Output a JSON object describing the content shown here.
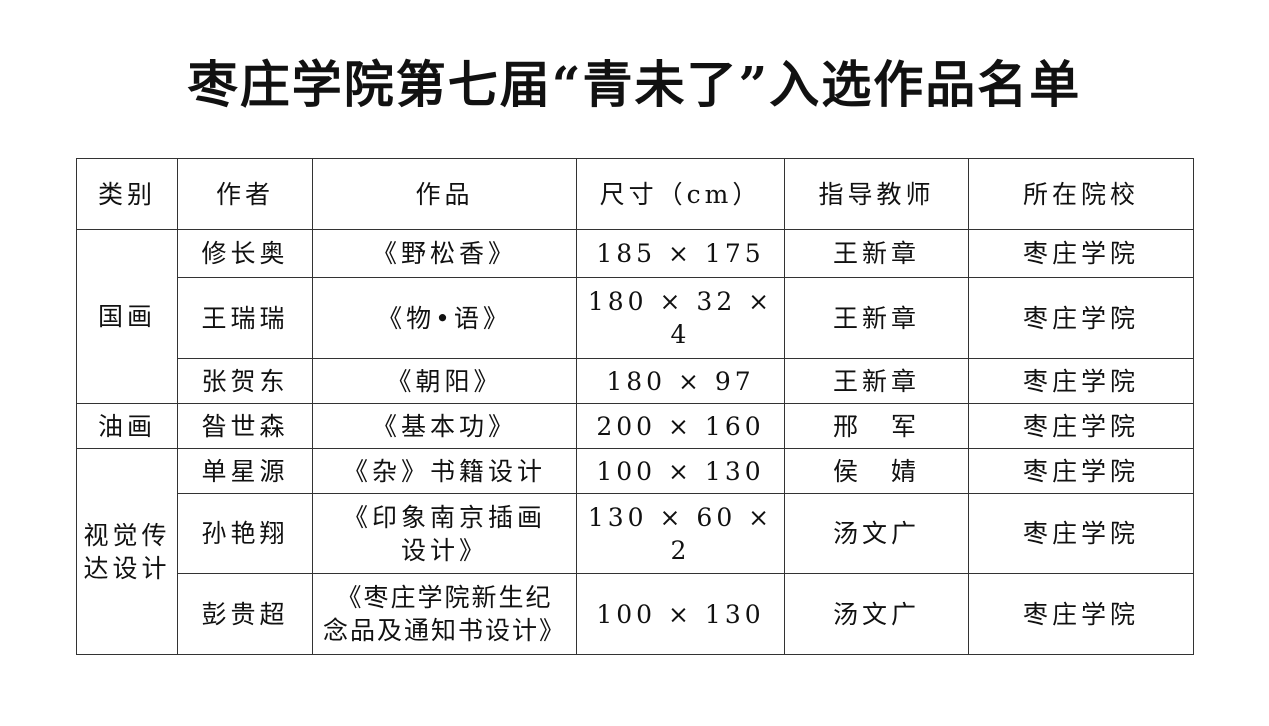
{
  "title": "枣庄学院第七届“青未了”入选作品名单",
  "headers": [
    "类别",
    "作者",
    "作品",
    "尺寸（cm）",
    "指导教师",
    "所在院校"
  ],
  "categories": [
    "国画",
    "油画",
    "视觉传达设计"
  ],
  "category_lines": {
    "visual": [
      "视觉传",
      "达设计"
    ]
  },
  "rows": [
    {
      "author": "修长奥",
      "work": [
        "《野松香》"
      ],
      "size": "185 × 175",
      "teacher": "王新章",
      "school": "枣庄学院"
    },
    {
      "author": "王瑞瑞",
      "work": [
        "《物•语》"
      ],
      "size": "180 × 32 × 4",
      "teacher": "王新章",
      "school": "枣庄学院"
    },
    {
      "author": "张贺东",
      "work": [
        "《朝阳》"
      ],
      "size": "180 × 97",
      "teacher": "王新章",
      "school": "枣庄学院"
    },
    {
      "author": "昝世森",
      "work": [
        "《基本功》"
      ],
      "size": "200 × 160",
      "teacher": "邢　军",
      "school": "枣庄学院"
    },
    {
      "author": "单星源",
      "work": [
        "《杂》书籍设计"
      ],
      "size": "100 × 130",
      "teacher": "侯　婧",
      "school": "枣庄学院"
    },
    {
      "author": "孙艳翔",
      "work": [
        "《印象南京插画",
        "设计》"
      ],
      "size": "130 × 60 × 2",
      "teacher": "汤文广",
      "school": "枣庄学院"
    },
    {
      "author": "彭贵超",
      "work": [
        "《枣庄学院新生纪",
        "念品及通知书设计》"
      ],
      "size": "100 × 130",
      "teacher": "汤文广",
      "school": "枣庄学院"
    }
  ]
}
